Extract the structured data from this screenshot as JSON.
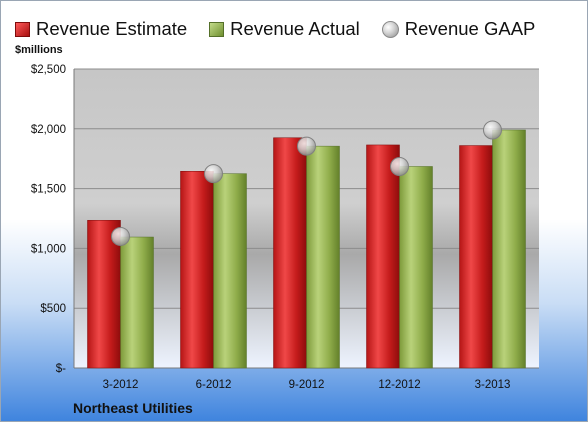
{
  "legend": {
    "estimate": "Revenue Estimate",
    "actual": "Revenue Actual",
    "gaap": "Revenue GAAP"
  },
  "unit_label": "$millions",
  "company": "Northeast Utilities",
  "colors": {
    "estimate": "#c41b1b",
    "actual": "#8fac4a",
    "gaap": "#c8c8c8"
  },
  "chart_data": {
    "type": "bar",
    "categories": [
      "3-2012",
      "6-2012",
      "9-2012",
      "12-2012",
      "3-2013"
    ],
    "series": [
      {
        "name": "Revenue Estimate",
        "type": "bar",
        "values": [
          1235,
          1645,
          1925,
          1865,
          1860
        ]
      },
      {
        "name": "Revenue Actual",
        "type": "bar",
        "values": [
          1095,
          1625,
          1855,
          1685,
          1990
        ]
      },
      {
        "name": "Revenue GAAP",
        "type": "scatter",
        "values": [
          1100,
          1625,
          1855,
          1685,
          1990
        ]
      }
    ],
    "ylim": [
      0,
      2500
    ],
    "yticks": [
      0,
      500,
      1000,
      1500,
      2000,
      2500
    ],
    "ytick_labels": [
      "$-",
      "$500",
      "$1,000",
      "$1,500",
      "$2,000",
      "$2,500"
    ],
    "grid": true,
    "legend_position": "top"
  }
}
